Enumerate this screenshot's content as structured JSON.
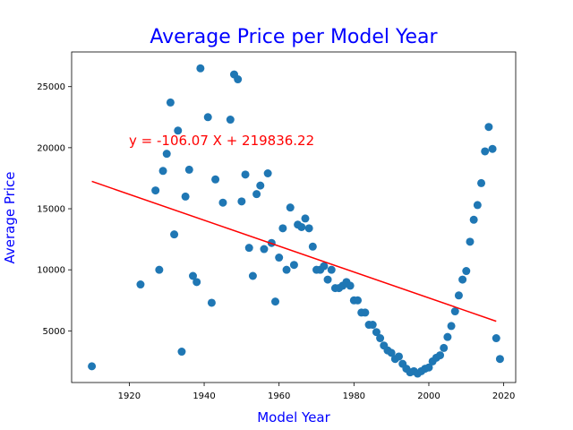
{
  "chart_data": {
    "type": "scatter",
    "title": "Average Price per Model Year",
    "xlabel": "Model Year",
    "ylabel": "Average Price",
    "xlim": [
      1904.6,
      2023.2
    ],
    "ylim": [
      770,
      27840
    ],
    "xticks": [
      1920,
      1940,
      1960,
      1980,
      2000,
      2020
    ],
    "yticks": [
      5000,
      10000,
      15000,
      20000,
      25000
    ],
    "grid": false,
    "legend": "none",
    "series": [
      {
        "color": "#1f77b4",
        "points": [
          [
            1910,
            2100
          ],
          [
            1923,
            8800
          ],
          [
            1927,
            16500
          ],
          [
            1928,
            10000
          ],
          [
            1929,
            18100
          ],
          [
            1930,
            19500
          ],
          [
            1931,
            23700
          ],
          [
            1932,
            12900
          ],
          [
            1933,
            21400
          ],
          [
            1934,
            3300
          ],
          [
            1935,
            16000
          ],
          [
            1936,
            18200
          ],
          [
            1937,
            9500
          ],
          [
            1938,
            9000
          ],
          [
            1939,
            26500
          ],
          [
            1941,
            22500
          ],
          [
            1942,
            7300
          ],
          [
            1943,
            17400
          ],
          [
            1945,
            15500
          ],
          [
            1947,
            22300
          ],
          [
            1948,
            26000
          ],
          [
            1949,
            25600
          ],
          [
            1950,
            15600
          ],
          [
            1951,
            17800
          ],
          [
            1952,
            11800
          ],
          [
            1953,
            9500
          ],
          [
            1954,
            16200
          ],
          [
            1955,
            16900
          ],
          [
            1956,
            11700
          ],
          [
            1957,
            17900
          ],
          [
            1958,
            12200
          ],
          [
            1959,
            7400
          ],
          [
            1960,
            11000
          ],
          [
            1961,
            13400
          ],
          [
            1962,
            10000
          ],
          [
            1963,
            15100
          ],
          [
            1964,
            10400
          ],
          [
            1965,
            13700
          ],
          [
            1966,
            13500
          ],
          [
            1967,
            14200
          ],
          [
            1968,
            13400
          ],
          [
            1969,
            11900
          ],
          [
            1970,
            10000
          ],
          [
            1971,
            10000
          ],
          [
            1972,
            10300
          ],
          [
            1973,
            9200
          ],
          [
            1974,
            10000
          ],
          [
            1975,
            8500
          ],
          [
            1976,
            8500
          ],
          [
            1977,
            8700
          ],
          [
            1978,
            9000
          ],
          [
            1979,
            8700
          ],
          [
            1980,
            7500
          ],
          [
            1981,
            7500
          ],
          [
            1982,
            6500
          ],
          [
            1983,
            6500
          ],
          [
            1984,
            5500
          ],
          [
            1985,
            5500
          ],
          [
            1986,
            4900
          ],
          [
            1987,
            4400
          ],
          [
            1988,
            3800
          ],
          [
            1989,
            3400
          ],
          [
            1990,
            3200
          ],
          [
            1991,
            2700
          ],
          [
            1992,
            2900
          ],
          [
            1993,
            2300
          ],
          [
            1994,
            1900
          ],
          [
            1995,
            1600
          ],
          [
            1996,
            1700
          ],
          [
            1997,
            1500
          ],
          [
            1998,
            1700
          ],
          [
            1999,
            1900
          ],
          [
            2000,
            2000
          ],
          [
            2001,
            2500
          ],
          [
            2002,
            2800
          ],
          [
            2003,
            3000
          ],
          [
            2004,
            3600
          ],
          [
            2005,
            4500
          ],
          [
            2006,
            5400
          ],
          [
            2007,
            6600
          ],
          [
            2008,
            7900
          ],
          [
            2009,
            9200
          ],
          [
            2010,
            9900
          ],
          [
            2011,
            12300
          ],
          [
            2012,
            14100
          ],
          [
            2013,
            15300
          ],
          [
            2014,
            17100
          ],
          [
            2015,
            19700
          ],
          [
            2016,
            21700
          ],
          [
            2017,
            19900
          ],
          [
            2018,
            4400
          ],
          [
            2019,
            2700
          ]
        ]
      }
    ],
    "trendline": {
      "color": "#ff0000",
      "slope": -106.07,
      "intercept": 219836.22,
      "x_range": [
        1910,
        2018
      ],
      "label": "y = -106.07 X + 219836.22"
    },
    "colors": {
      "title": "#0000ff",
      "axis_label": "#0000ff",
      "equation": "#ff0000"
    }
  }
}
